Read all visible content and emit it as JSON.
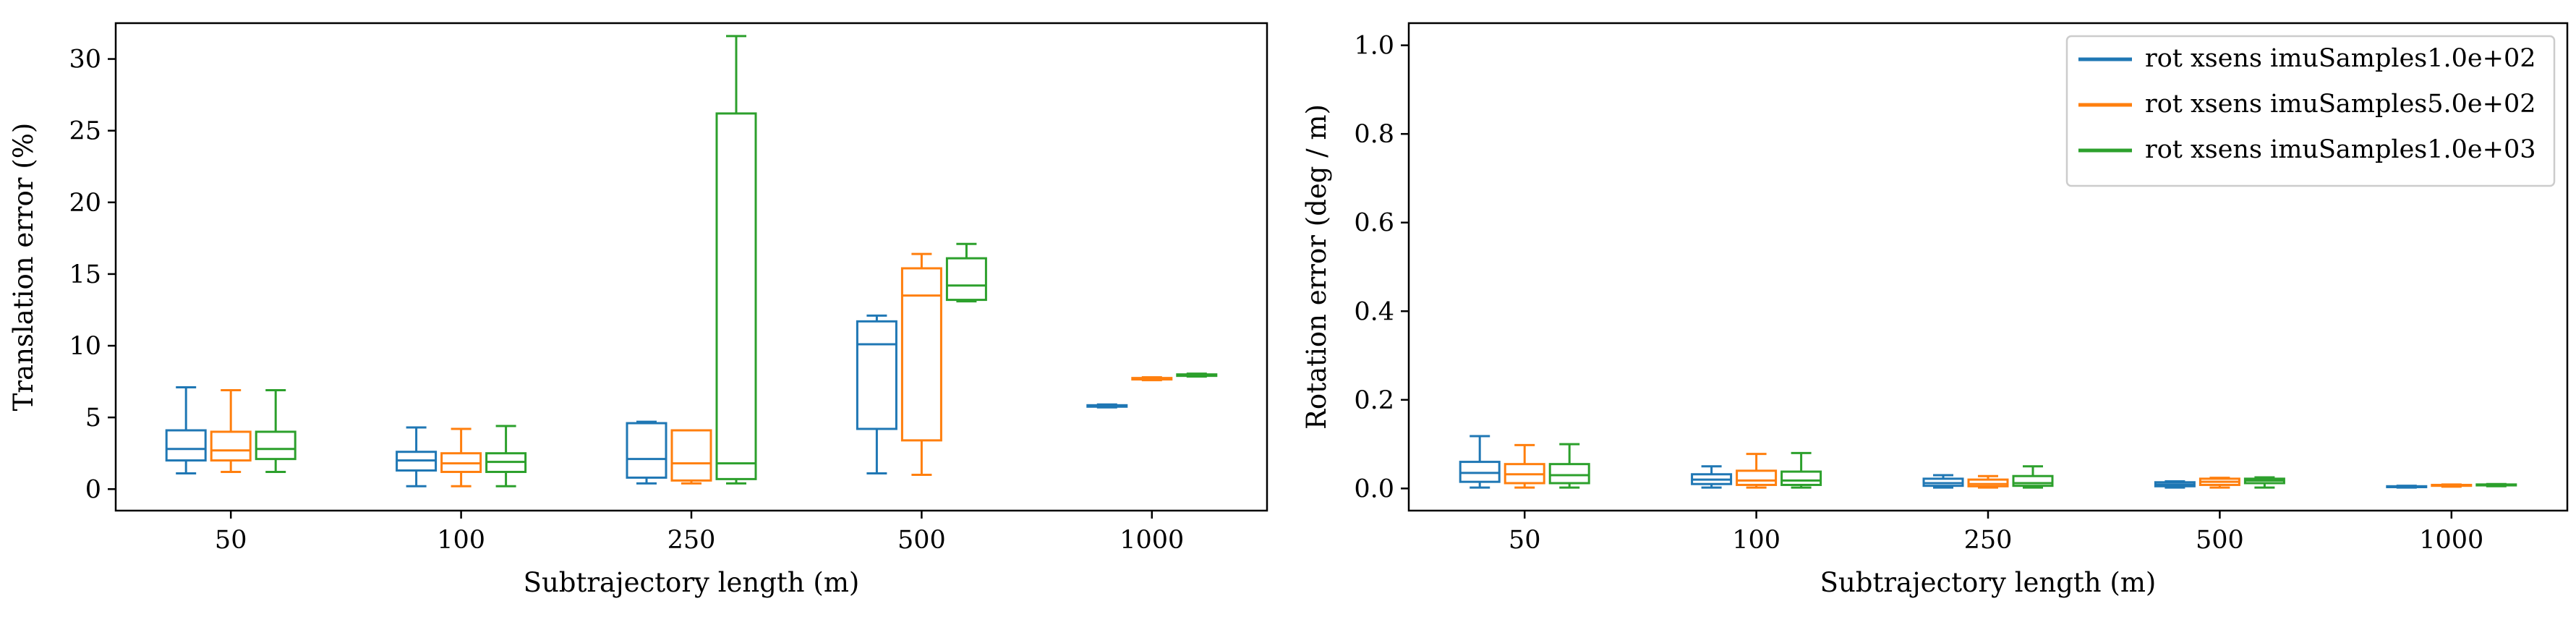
{
  "chart_data": [
    {
      "type": "box",
      "xlabel": "Subtrajectory length (m)",
      "ylabel": "Translation error (%)",
      "categories": [
        "50",
        "100",
        "250",
        "500",
        "1000"
      ],
      "ylim": [
        -1.5,
        32.5
      ],
      "yticks": [
        0,
        5,
        10,
        15,
        20,
        25,
        30
      ],
      "grid": false,
      "series": [
        {
          "color": "#1f77b4",
          "boxes": [
            {
              "whislo": 1.1,
              "q1": 2.0,
              "med": 2.8,
              "q3": 4.1,
              "whishi": 7.1
            },
            {
              "whislo": 0.2,
              "q1": 1.3,
              "med": 2.0,
              "q3": 2.6,
              "whishi": 4.3
            },
            {
              "whislo": 0.4,
              "q1": 0.8,
              "med": 2.1,
              "q3": 4.6,
              "whishi": 4.7
            },
            {
              "whislo": 1.1,
              "q1": 4.2,
              "med": 10.1,
              "q3": 11.7,
              "whishi": 12.1
            },
            {
              "whislo": 5.7,
              "q1": 5.75,
              "med": 5.8,
              "q3": 5.85,
              "whishi": 5.9
            }
          ]
        },
        {
          "color": "#ff7f0e",
          "boxes": [
            {
              "whislo": 1.2,
              "q1": 2.0,
              "med": 2.7,
              "q3": 4.0,
              "whishi": 6.9
            },
            {
              "whislo": 0.2,
              "q1": 1.2,
              "med": 1.8,
              "q3": 2.5,
              "whishi": 4.2
            },
            {
              "whislo": 0.4,
              "q1": 0.6,
              "med": 1.8,
              "q3": 4.1,
              "whishi": 4.1
            },
            {
              "whislo": 1.0,
              "q1": 3.4,
              "med": 13.5,
              "q3": 15.4,
              "whishi": 16.4
            },
            {
              "whislo": 7.6,
              "q1": 7.65,
              "med": 7.7,
              "q3": 7.75,
              "whishi": 7.8
            }
          ]
        },
        {
          "color": "#2ca02c",
          "boxes": [
            {
              "whislo": 1.2,
              "q1": 2.1,
              "med": 2.8,
              "q3": 4.0,
              "whishi": 6.9
            },
            {
              "whislo": 0.2,
              "q1": 1.2,
              "med": 1.9,
              "q3": 2.5,
              "whishi": 4.4
            },
            {
              "whislo": 0.4,
              "q1": 0.7,
              "med": 1.8,
              "q3": 26.2,
              "whishi": 31.6
            },
            {
              "whislo": 13.1,
              "q1": 13.2,
              "med": 14.2,
              "q3": 16.1,
              "whishi": 17.1
            },
            {
              "whislo": 7.85,
              "q1": 7.9,
              "med": 7.95,
              "q3": 8.0,
              "whishi": 8.05
            }
          ]
        }
      ]
    },
    {
      "type": "box",
      "xlabel": "Subtrajectory length (m)",
      "ylabel": "Rotation error (deg / m)",
      "categories": [
        "50",
        "100",
        "250",
        "500",
        "1000"
      ],
      "ylim": [
        -0.05,
        1.05
      ],
      "yticks": [
        "0.0",
        "0.2",
        "0.4",
        "0.6",
        "0.8",
        "1.0"
      ],
      "grid": false,
      "legend": {
        "position": "top-right",
        "entries": [
          {
            "label": "rot xsens imuSamples1.0e+02",
            "color": "#1f77b4"
          },
          {
            "label": "rot xsens imuSamples5.0e+02",
            "color": "#ff7f0e"
          },
          {
            "label": "rot xsens imuSamples1.0e+03",
            "color": "#2ca02c"
          }
        ]
      },
      "series": [
        {
          "name": "rot xsens imuSamples1.0e+02",
          "color": "#1f77b4",
          "boxes": [
            {
              "whislo": 0.002,
              "q1": 0.015,
              "med": 0.035,
              "q3": 0.06,
              "whishi": 0.118
            },
            {
              "whislo": 0.002,
              "q1": 0.01,
              "med": 0.02,
              "q3": 0.032,
              "whishi": 0.05
            },
            {
              "whislo": 0.002,
              "q1": 0.006,
              "med": 0.012,
              "q3": 0.022,
              "whishi": 0.03
            },
            {
              "whislo": 0.002,
              "q1": 0.005,
              "med": 0.009,
              "q3": 0.014,
              "whishi": 0.016
            },
            {
              "whislo": 0.002,
              "q1": 0.003,
              "med": 0.004,
              "q3": 0.005,
              "whishi": 0.006
            }
          ]
        },
        {
          "name": "rot xsens imuSamples5.0e+02",
          "color": "#ff7f0e",
          "boxes": [
            {
              "whislo": 0.002,
              "q1": 0.012,
              "med": 0.032,
              "q3": 0.055,
              "whishi": 0.098
            },
            {
              "whislo": 0.002,
              "q1": 0.008,
              "med": 0.018,
              "q3": 0.04,
              "whishi": 0.078
            },
            {
              "whislo": 0.002,
              "q1": 0.005,
              "med": 0.01,
              "q3": 0.02,
              "whishi": 0.028
            },
            {
              "whislo": 0.002,
              "q1": 0.008,
              "med": 0.015,
              "q3": 0.022,
              "whishi": 0.024
            },
            {
              "whislo": 0.004,
              "q1": 0.006,
              "med": 0.007,
              "q3": 0.008,
              "whishi": 0.009
            }
          ]
        },
        {
          "name": "rot xsens imuSamples1.0e+03",
          "color": "#2ca02c",
          "boxes": [
            {
              "whislo": 0.002,
              "q1": 0.012,
              "med": 0.03,
              "q3": 0.055,
              "whishi": 0.1
            },
            {
              "whislo": 0.002,
              "q1": 0.008,
              "med": 0.018,
              "q3": 0.038,
              "whishi": 0.08
            },
            {
              "whislo": 0.002,
              "q1": 0.006,
              "med": 0.012,
              "q3": 0.028,
              "whishi": 0.05
            },
            {
              "whislo": 0.002,
              "q1": 0.012,
              "med": 0.018,
              "q3": 0.022,
              "whishi": 0.025
            },
            {
              "whislo": 0.005,
              "q1": 0.007,
              "med": 0.008,
              "q3": 0.009,
              "whishi": 0.01
            }
          ]
        }
      ]
    }
  ]
}
